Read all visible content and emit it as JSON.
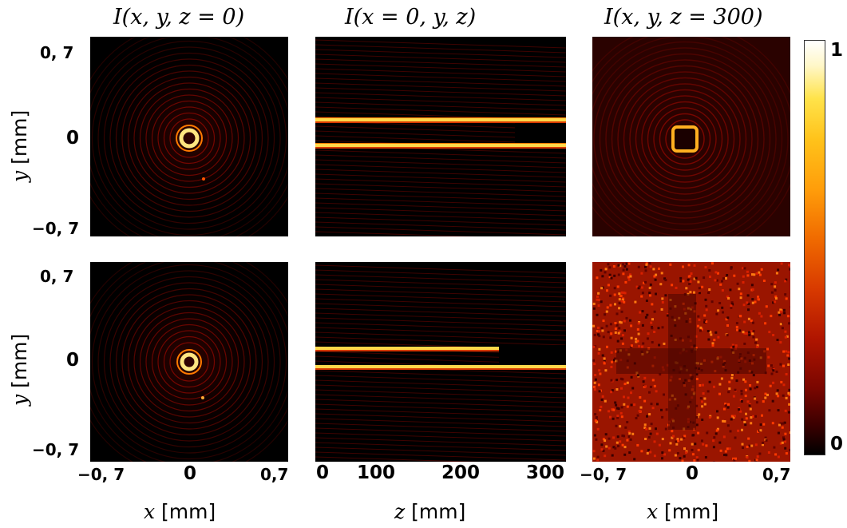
{
  "titles": {
    "col1": "I(x, y, z = 0)",
    "col2": "I(x = 0, y, z)",
    "col3": "I(x, y, z = 300)"
  },
  "y_ticks": {
    "top": "0, 7",
    "mid": "0",
    "bottom": "−0, 7"
  },
  "y_label": {
    "var": "y",
    "unit": " [mm]"
  },
  "x_ticks_col1": {
    "left": "−0, 7",
    "mid": "0",
    "right": "0,7"
  },
  "x_ticks_col2": [
    "0",
    "100",
    "200",
    "300"
  ],
  "x_ticks_col3": {
    "left": "−0, 7",
    "mid": "0",
    "right": "0,7"
  },
  "x_labels": {
    "col1": {
      "var": "x",
      "unit": " [mm]"
    },
    "col2": {
      "var": "z",
      "unit": " [mm]"
    },
    "col3": {
      "var": "x",
      "unit": " [mm]"
    }
  },
  "colorbar": {
    "max": "1",
    "min": "0"
  },
  "colors": {
    "hot_bright": "#ffe680",
    "hot_mid": "#ff7a00",
    "hot_dark": "#8a0800"
  }
}
